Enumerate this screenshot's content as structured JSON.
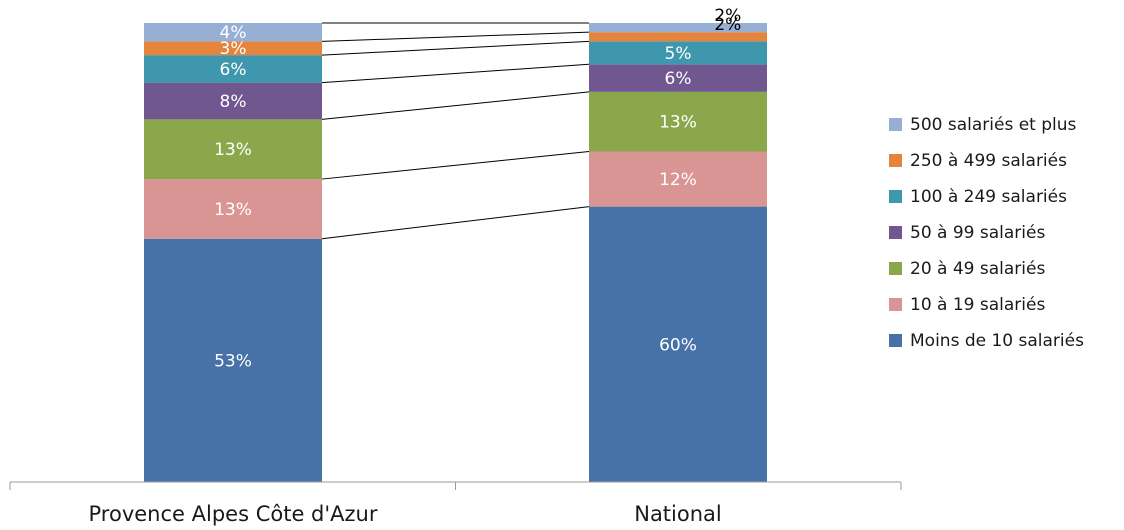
{
  "chart_data": {
    "type": "bar",
    "stacked": true,
    "percent": true,
    "series_lines": true,
    "categories": [
      "Provence Alpes Côte d'Azur",
      "National"
    ],
    "series": [
      {
        "name": "Moins de 10 salariés",
        "values": [
          53,
          60
        ],
        "labels": [
          "53%",
          "60%"
        ],
        "color": "#4672A8"
      },
      {
        "name": "10 à 19 salariés",
        "values": [
          13,
          12
        ],
        "labels": [
          "13%",
          "12%"
        ],
        "color": "#D99594"
      },
      {
        "name": "20 à 49 salariés",
        "values": [
          13,
          13
        ],
        "labels": [
          "13%",
          "13%"
        ],
        "color": "#8AA84B"
      },
      {
        "name": "50 à 99 salariés",
        "values": [
          8,
          6
        ],
        "labels": [
          "8%",
          "6%"
        ],
        "color": "#70578F"
      },
      {
        "name": "100 à 249 salariés",
        "values": [
          6,
          5
        ],
        "labels": [
          "6%",
          "5%"
        ],
        "color": "#3E97AC"
      },
      {
        "name": "250 à 499 salariés",
        "values": [
          3,
          2
        ],
        "labels": [
          "3%",
          "2%"
        ],
        "color": "#E5843C"
      },
      {
        "name": "500 salariés et plus",
        "values": [
          4,
          2
        ],
        "labels": [
          "4%",
          "2%"
        ],
        "color": "#98AFD5"
      }
    ],
    "ylim": [
      0,
      100
    ],
    "legend_position": "right",
    "grid": false
  }
}
